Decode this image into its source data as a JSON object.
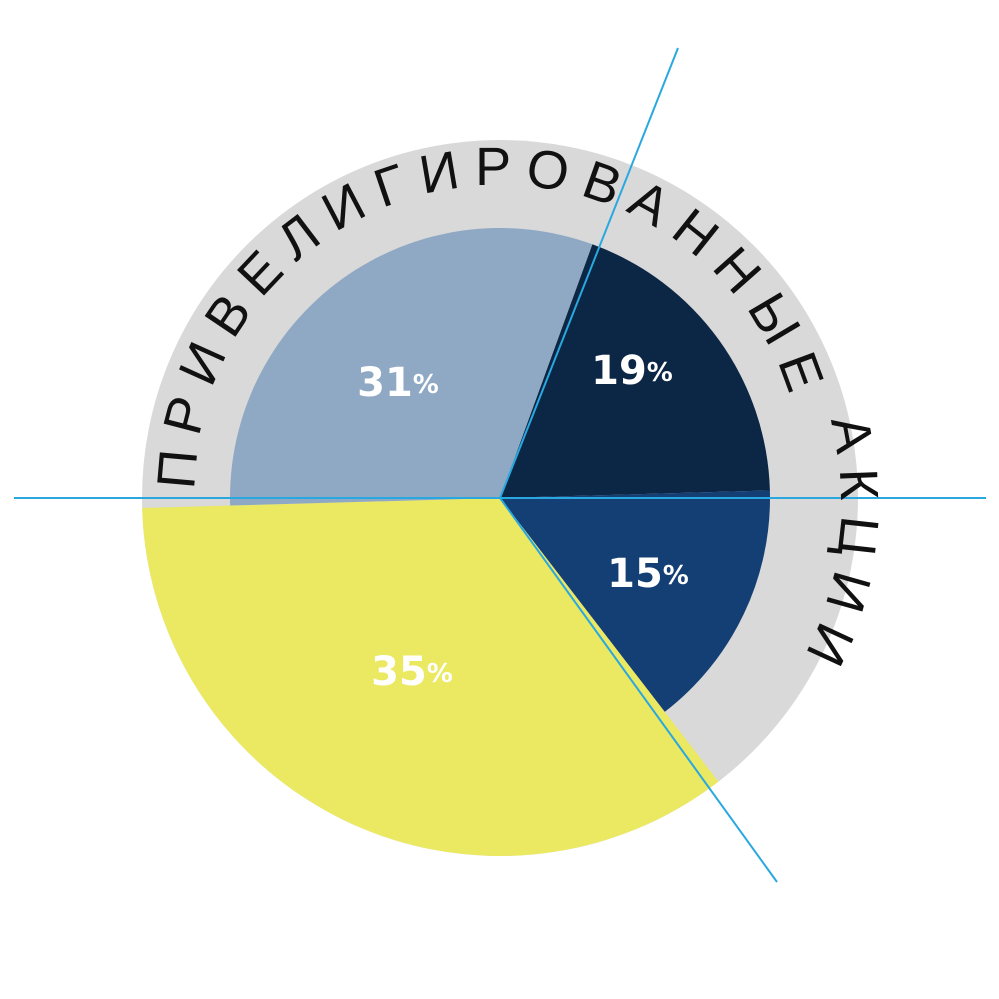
{
  "chart_data": {
    "type": "pie",
    "title": "ПРИВЕЛИГИРОВАННЫЕ АКЦИИ",
    "slices": [
      {
        "value": 19,
        "label": "19",
        "unit": "%",
        "color": "#0c2645"
      },
      {
        "value": 15,
        "label": "15",
        "unit": "%",
        "color": "#143f74"
      },
      {
        "value": 35,
        "label": "35",
        "unit": "%",
        "color": "#ebe862"
      },
      {
        "value": 31,
        "label": "31",
        "unit": "%",
        "color": "#8fa9c4"
      }
    ],
    "ring_color": "#d9d9d9",
    "line_color": "#29a8e0"
  }
}
